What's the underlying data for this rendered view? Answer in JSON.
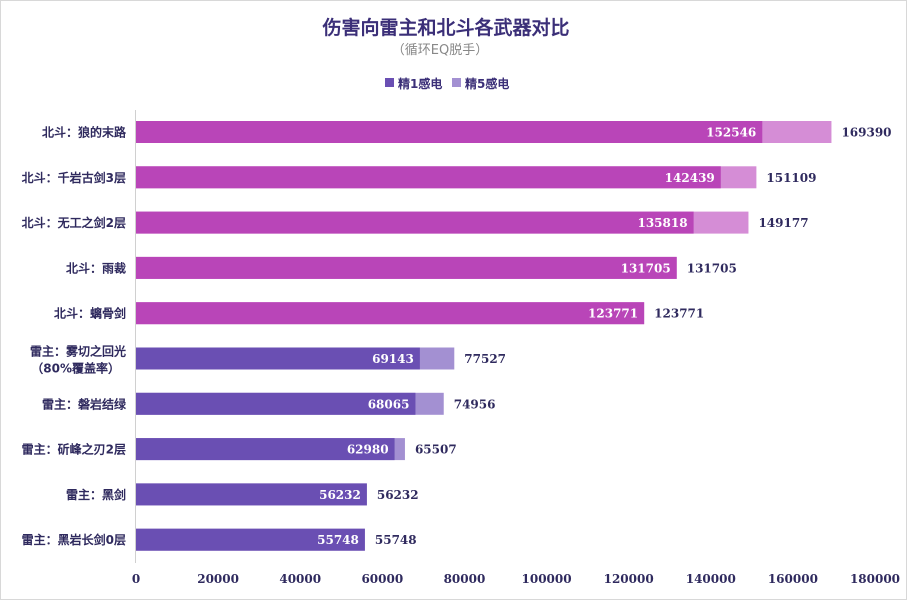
{
  "chart_data": {
    "type": "bar",
    "orientation": "horizontal",
    "stacked": "overlay",
    "title": "伤害向雷主和北斗各武器对比",
    "subtitle": "（循环EQ脱手）",
    "legend": [
      {
        "name": "精1感电",
        "color": "#6a4fb3"
      },
      {
        "name": "精5感电",
        "color": "#a390d2"
      }
    ],
    "legend_position": "top",
    "categories": [
      [
        "北斗：狼的末路"
      ],
      [
        "北斗：千岩古剑3层"
      ],
      [
        "北斗：无工之剑2层"
      ],
      [
        "北斗：雨裁"
      ],
      [
        "北斗：螭骨剑"
      ],
      [
        "雷主：雾切之回光",
        "（80%覆盖率）"
      ],
      [
        "雷主：磐岩结绿"
      ],
      [
        "雷主：斫峰之刃2层"
      ],
      [
        "雷主：黑剑"
      ],
      [
        "雷主：黑岩长剑0层"
      ]
    ],
    "character": [
      "beidou",
      "beidou",
      "beidou",
      "beidou",
      "beidou",
      "raiden",
      "raiden",
      "raiden",
      "raiden",
      "raiden"
    ],
    "series": [
      {
        "name": "精1感电",
        "values": [
          152546,
          142439,
          135818,
          131705,
          123771,
          69143,
          68065,
          62980,
          56232,
          55748
        ]
      },
      {
        "name": "精5感电",
        "values": [
          169390,
          151109,
          149177,
          131705,
          123771,
          77527,
          74956,
          65507,
          56232,
          55748
        ]
      }
    ],
    "colors": {
      "beidou_r1": "#b945b8",
      "beidou_r5": "#d58dd6",
      "raiden_r1": "#6a4fb3",
      "raiden_r5": "#a390d2"
    },
    "xlim": [
      0,
      180000
    ],
    "xticks": [
      "0",
      "20000",
      "40000",
      "60000",
      "80000",
      "100000",
      "120000",
      "140000",
      "160000",
      "180000"
    ],
    "grid": false
  }
}
